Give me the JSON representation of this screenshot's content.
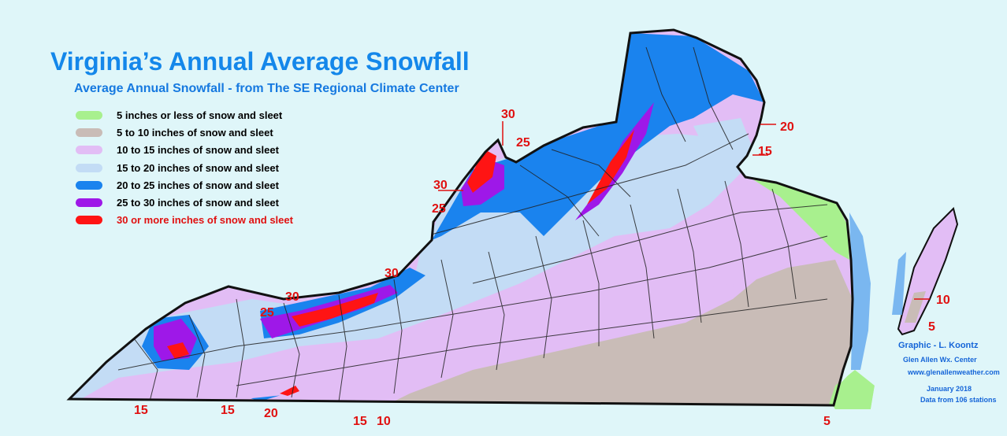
{
  "title": "Virginia’s  Annual Average Snowfall",
  "subtitle": "Average Annual Snowfall - from The SE Regional Climate Center",
  "legend": [
    {
      "label": "5 inches or less of snow and sleet",
      "color": "#a8f08e"
    },
    {
      "label": "5 to 10 inches of snow and sleet",
      "color": "#c9bcb7"
    },
    {
      "label": "10 to 15 inches of snow and sleet",
      "color": "#e2bdf5"
    },
    {
      "label": "15 to 20 inches of snow and sleet",
      "color": "#c3dcf5"
    },
    {
      "label": "20 to 25 inches of snow and sleet",
      "color": "#1a83ee"
    },
    {
      "label": "25 to 30 inches of snow and sleet",
      "color": "#9e18e8"
    },
    {
      "label": "30 or more inches of snow and sleet",
      "color": "#ff1414"
    }
  ],
  "contour_labels": {
    "far_sw_15": "15",
    "sw_15": "15",
    "sw_20": "20",
    "south_15": "15",
    "south_10": "10",
    "se_5": "5",
    "ridge_25": "25",
    "ridge_30": "30",
    "mid_30": "30",
    "highland_30a": "30",
    "highland_25a": "25",
    "highland_30b": "30",
    "highland_25b": "25",
    "north_20": "20",
    "north_15": "15",
    "shore_10": "10",
    "shore_5": "5"
  },
  "credits": {
    "graphic": "Graphic - L. Koontz",
    "center": "Glen Allen Wx. Center",
    "site": "www.glenallenweather.com",
    "date": "January  2018",
    "stations": "Data from 106 stations"
  },
  "colors": {
    "background": "#dff6f9",
    "label_red": "#e01010",
    "title_blue": "#1487ea",
    "credit_blue": "#1565d8",
    "water": "#4f9ded"
  }
}
